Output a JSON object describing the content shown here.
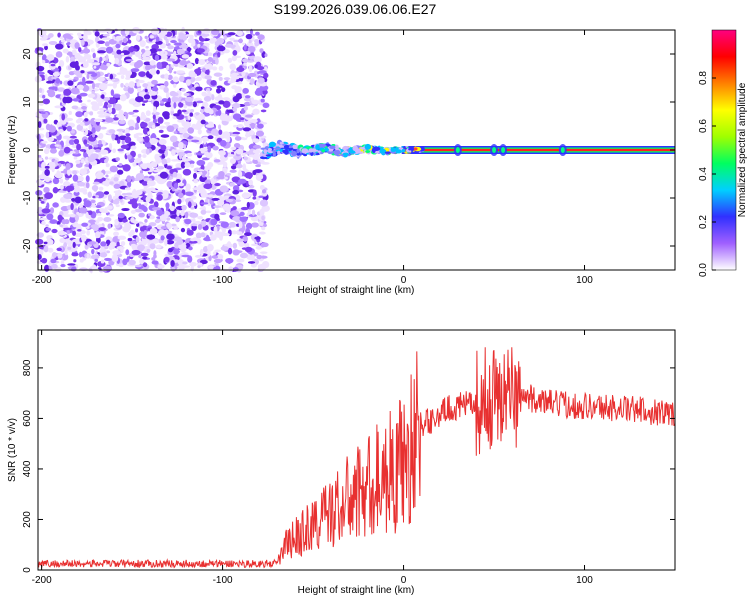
{
  "title": "S199.2026.039.06.06.E27",
  "chart_data": [
    {
      "type": "heatmap",
      "xlabel": "Height of straight line (km)",
      "ylabel": "Frequency (Hz)",
      "xlim": [
        -202,
        150
      ],
      "ylim": [
        -25,
        25
      ],
      "x_ticks": [
        "-200",
        "-100",
        "0",
        "100"
      ],
      "y_ticks": [
        "-20",
        "-10",
        "0",
        "10",
        "20"
      ],
      "colorbar": {
        "label": "Normalized spectral amplitude",
        "range": [
          0,
          1
        ],
        "ticks": [
          "0.0",
          "0.2",
          "0.4",
          "0.6",
          "0.8"
        ],
        "colors": [
          "#ffffff",
          "#a060ff",
          "#3030ff",
          "#00d0ff",
          "#00ff60",
          "#a0ff00",
          "#ffff00",
          "#ff8000",
          "#ff0000",
          "#ff0080"
        ]
      },
      "noise_region_x": [
        -202,
        -76
      ],
      "signal_band_x": [
        10,
        150
      ],
      "signal_band_freq_hz": 0
    },
    {
      "type": "line",
      "xlabel": "Height of straight line (km)",
      "ylabel": "SNR (10 * v/v)",
      "xlim": [
        -202,
        150
      ],
      "ylim": [
        0,
        950
      ],
      "x_ticks": [
        "-200",
        "-100",
        "0",
        "100"
      ],
      "y_ticks": [
        "0",
        "200",
        "400",
        "600",
        "800"
      ],
      "color": "#e83030",
      "trend": {
        "x": [
          -202,
          -70,
          -65,
          -40,
          -20,
          0,
          10,
          25,
          40,
          55,
          65,
          80,
          100,
          120,
          150
        ],
        "y": [
          25,
          25,
          100,
          230,
          330,
          430,
          570,
          640,
          660,
          700,
          690,
          660,
          650,
          640,
          620
        ]
      }
    }
  ]
}
